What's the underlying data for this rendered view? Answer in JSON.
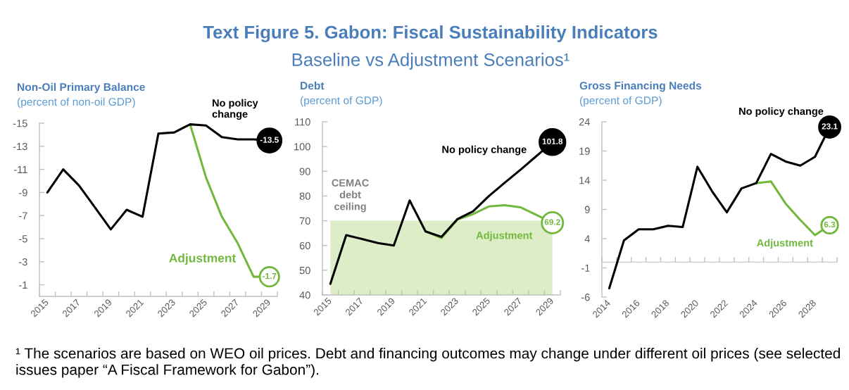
{
  "chart_data": [
    {
      "type": "other",
      "title": "Text Figure 5. Gabon: Fiscal Sustainability Indicators",
      "subtitle": "Baseline vs Adjustment Scenarios¹"
    },
    {
      "type": "line",
      "title": "Non-Oil Primary Balance",
      "subtitle": "(percent of non-oil GDP)",
      "categories": [
        "2015",
        null,
        "2017",
        null,
        "2019",
        null,
        "2021",
        null,
        "2023",
        null,
        "2025",
        null,
        "2027",
        null,
        "2029"
      ],
      "series": [
        {
          "name": "No policy\nchange",
          "color": "#000000",
          "values": [
            -9.0,
            -11.0,
            -9.6,
            -7.7,
            -5.8,
            -7.5,
            -6.9,
            -14.1,
            -14.2,
            -14.9,
            -14.8,
            -13.8,
            -13.6,
            -13.6,
            -13.5
          ],
          "value_labels": [
            null,
            null,
            null,
            null,
            null,
            null,
            null,
            null,
            null,
            null,
            null,
            null,
            null,
            null,
            "-13.5"
          ]
        },
        {
          "name": "Adjustment",
          "color": "#72b83d",
          "values": [
            null,
            null,
            null,
            null,
            null,
            null,
            null,
            null,
            null,
            -14.9,
            -10.3,
            -6.9,
            -4.6,
            -1.7,
            -1.7
          ],
          "value_labels": [
            null,
            null,
            null,
            null,
            null,
            null,
            null,
            null,
            null,
            null,
            null,
            null,
            null,
            null,
            "-1.7"
          ]
        }
      ],
      "ylim": [
        0,
        -15
      ],
      "yticks": [
        -15,
        -13,
        -11,
        -9,
        -7,
        -5,
        -3,
        -1
      ]
    },
    {
      "type": "line",
      "title": "Debt",
      "subtitle": "(percent of GDP)",
      "categories": [
        "2015",
        null,
        "2017",
        null,
        "2019",
        null,
        "2021",
        null,
        "2023",
        null,
        "2025",
        null,
        "2027",
        null,
        "2029"
      ],
      "series": [
        {
          "name": "No policy change",
          "color": "#000000",
          "values": [
            44.5,
            64.2,
            62.6,
            61.0,
            60.0,
            78.2,
            65.7,
            63.5,
            70.6,
            73.8,
            80.0,
            85.4,
            90.7,
            96.2,
            101.8
          ],
          "value_labels": [
            null,
            null,
            null,
            null,
            null,
            null,
            null,
            null,
            null,
            null,
            null,
            null,
            null,
            null,
            "101.8"
          ]
        },
        {
          "name": "Adjustment",
          "color": "#72b83d",
          "values": [
            null,
            null,
            null,
            null,
            null,
            null,
            65.7,
            63.0,
            70.4,
            72.7,
            75.8,
            76.3,
            75.4,
            72.3,
            69.2
          ],
          "value_labels": [
            null,
            null,
            null,
            null,
            null,
            null,
            null,
            null,
            null,
            null,
            null,
            null,
            null,
            null,
            "69.2"
          ]
        }
      ],
      "bands": [
        {
          "axis": "y",
          "from": 40,
          "to": 70,
          "label": "CEMAC\ndebt\nceiling",
          "color": "#dcedc8"
        }
      ],
      "ylim": [
        40,
        110
      ],
      "yticks": [
        40,
        50,
        60,
        70,
        80,
        90,
        100,
        110
      ]
    },
    {
      "type": "line",
      "title": "Gross Financing Needs",
      "subtitle": "(percent of GDP)",
      "categories": [
        "2014",
        null,
        "2016",
        null,
        "2018",
        null,
        "2020",
        null,
        "2022",
        null,
        "2024",
        null,
        "2026",
        null,
        "2028",
        null
      ],
      "series": [
        {
          "name": "No policy change",
          "color": "#000000",
          "values": [
            -4.5,
            3.7,
            5.6,
            5.6,
            6.2,
            6.0,
            16.3,
            12.1,
            8.5,
            12.6,
            13.5,
            18.5,
            17.2,
            16.5,
            18.0,
            23.1
          ],
          "value_labels": [
            null,
            null,
            null,
            null,
            null,
            null,
            null,
            null,
            null,
            null,
            null,
            null,
            null,
            null,
            null,
            "23.1"
          ]
        },
        {
          "name": "Adjustment",
          "color": "#72b83d",
          "values": [
            null,
            null,
            null,
            null,
            null,
            null,
            null,
            null,
            null,
            null,
            13.5,
            13.8,
            10.0,
            7.2,
            4.6,
            6.3
          ],
          "value_labels": [
            null,
            null,
            null,
            null,
            null,
            null,
            null,
            null,
            null,
            null,
            null,
            null,
            null,
            null,
            null,
            "6.3"
          ]
        }
      ],
      "ylim": [
        -6,
        24
      ],
      "yticks": [
        -6,
        -1,
        4,
        9,
        14,
        19,
        24
      ]
    },
    {
      "type": "other",
      "annotations": [
        "¹ The scenarios are based on WEO oil prices. Debt and financing outcomes may change under different oil prices (see selected issues paper “A Fiscal Framework for Gabon”)."
      ]
    }
  ]
}
